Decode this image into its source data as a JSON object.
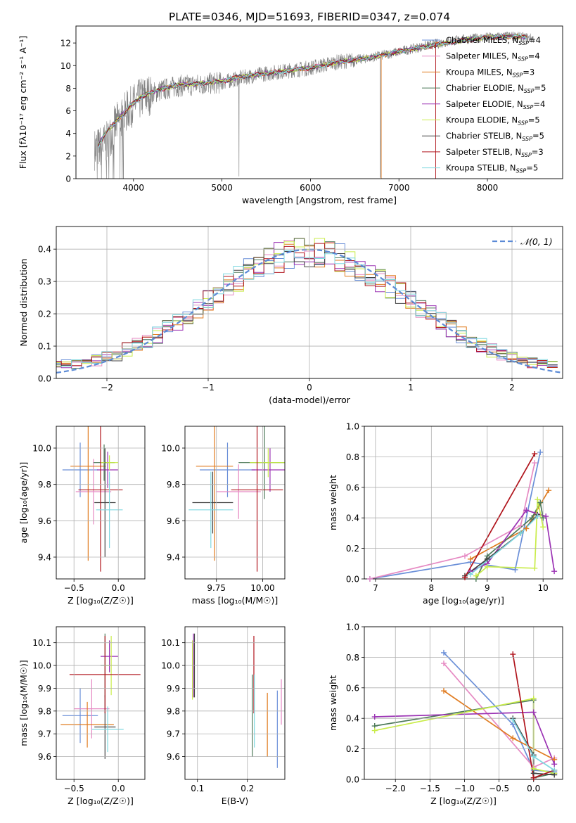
{
  "title": "PLATE=0346, MJD=51693, FIBERID=0347, z=0.074",
  "models": [
    {
      "name": "Chabrier MILES",
      "nssp": "4",
      "color": "#6a8fd8"
    },
    {
      "name": "Salpeter MILES",
      "nssp": "4",
      "color": "#e68ac3"
    },
    {
      "name": "Kroupa MILES",
      "nssp": "3",
      "color": "#e07b1f"
    },
    {
      "name": "Chabrier ELODIE",
      "nssp": "5",
      "color": "#4e7a5a"
    },
    {
      "name": "Salpeter ELODIE",
      "nssp": "4",
      "color": "#9b32b4"
    },
    {
      "name": "Kroupa ELODIE",
      "nssp": "5",
      "color": "#c9ec4a"
    },
    {
      "name": "Chabrier STELIB",
      "nssp": "5",
      "color": "#444444"
    },
    {
      "name": "Salpeter STELIB",
      "nssp": "3",
      "color": "#b0141c"
    },
    {
      "name": "Kroupa STELIB",
      "nssp": "5",
      "color": "#7fd8e0"
    }
  ],
  "chart_data": [
    {
      "id": "spectrum",
      "type": "line",
      "xlabel": "wavelength [Angstrom, rest frame]",
      "ylabel": "Flux [fλ10⁻¹⁷ erg cm⁻² s⁻¹ A⁻¹]",
      "xlim": [
        3350,
        8850
      ],
      "ylim": [
        0,
        13.5
      ],
      "xticks": [
        4000,
        5000,
        6000,
        7000,
        8000
      ],
      "yticks": [
        0,
        2,
        4,
        6,
        8,
        10,
        12
      ],
      "data_color": "#808080",
      "data_knots": [
        [
          3570,
          2.6
        ],
        [
          3700,
          3.2
        ],
        [
          3800,
          4.8
        ],
        [
          3950,
          6.2
        ],
        [
          4100,
          7.2
        ],
        [
          4300,
          7.8
        ],
        [
          4500,
          8.2
        ],
        [
          4700,
          8.3
        ],
        [
          5000,
          8.5
        ],
        [
          5200,
          8.9
        ],
        [
          5500,
          9.3
        ],
        [
          5800,
          9.6
        ],
        [
          6000,
          9.8
        ],
        [
          6300,
          10.3
        ],
        [
          6600,
          10.6
        ],
        [
          6800,
          10.9
        ],
        [
          7100,
          11.4
        ],
        [
          7400,
          11.9
        ],
        [
          7700,
          12.3
        ],
        [
          8000,
          12.5
        ],
        [
          8300,
          12.6
        ],
        [
          8500,
          12.4
        ]
      ],
      "model_knots": [
        [
          3600,
          2.9
        ],
        [
          3700,
          4.2
        ],
        [
          3800,
          5.0
        ],
        [
          3950,
          6.3
        ],
        [
          4100,
          7.3
        ],
        [
          4300,
          7.9
        ],
        [
          4500,
          8.3
        ],
        [
          4700,
          8.4
        ],
        [
          5000,
          8.6
        ],
        [
          5200,
          9.0
        ],
        [
          5500,
          9.3
        ],
        [
          5800,
          9.6
        ],
        [
          6000,
          9.8
        ],
        [
          6300,
          10.3
        ],
        [
          6600,
          10.6
        ],
        [
          6800,
          10.9
        ],
        [
          7100,
          11.4
        ],
        [
          7400,
          11.8
        ],
        [
          7700,
          12.2
        ],
        [
          8000,
          12.5
        ],
        [
          8300,
          12.6
        ],
        [
          8450,
          12.5
        ]
      ]
    },
    {
      "id": "residuals",
      "type": "step",
      "xlabel": "(data-model)/error",
      "ylabel": "Normed distribution",
      "xlim": [
        -2.5,
        2.5
      ],
      "ylim": [
        0,
        0.47
      ],
      "xticks": [
        -2,
        -1,
        0,
        1,
        2
      ],
      "yticks": [
        0.0,
        0.1,
        0.2,
        0.3,
        0.4
      ],
      "legend": "𝒩(0, 1)",
      "gauss_color": "#5b8ad6"
    },
    {
      "id": "age_vs_Z",
      "type": "errorbar",
      "xlabel": "Z [log₁₀(Z/Z☉)]",
      "ylabel": "age  [log₁₀(age/yr)]",
      "xlim": [
        -0.7,
        0.3
      ],
      "ylim": [
        9.28,
        10.12
      ],
      "xticks": [
        -0.5,
        0.0
      ],
      "yticks": [
        9.4,
        9.6,
        9.8,
        10.0
      ],
      "points": [
        {
          "x": -0.43,
          "y": 9.88,
          "xe": 0.2,
          "ye": 0.15
        },
        {
          "x": -0.28,
          "y": 9.76,
          "xe": 0.2,
          "ye": 0.18
        },
        {
          "x": -0.34,
          "y": 9.9,
          "xe": 0.2,
          "ye": 0.52
        },
        {
          "x": -0.16,
          "y": 9.92,
          "xe": 0.12,
          "ye": 0.1
        },
        {
          "x": -0.12,
          "y": 9.88,
          "xe": 0.12,
          "ye": 0.1
        },
        {
          "x": -0.1,
          "y": 9.92,
          "xe": 0.1,
          "ye": 0.04
        },
        {
          "x": -0.15,
          "y": 9.7,
          "xe": 0.12,
          "ye": 0.3
        },
        {
          "x": -0.2,
          "y": 9.77,
          "xe": 0.25,
          "ye": 0.45
        },
        {
          "x": -0.1,
          "y": 9.66,
          "xe": 0.15,
          "ye": 0.21
        }
      ]
    },
    {
      "id": "age_vs_mass",
      "type": "errorbar",
      "xlabel": "mass [log₁₀(M/M☉)]",
      "ylabel": "",
      "xlim": [
        9.58,
        10.12
      ],
      "ylim": [
        9.28,
        10.12
      ],
      "xticks": [
        9.75,
        10.0
      ],
      "yticks": [
        9.4,
        9.6,
        9.8,
        10.0
      ],
      "points": [
        {
          "x": 9.81,
          "y": 9.88,
          "xe": 0.15,
          "ye": 0.15
        },
        {
          "x": 9.87,
          "y": 9.76,
          "xe": 0.12,
          "ye": 0.15
        },
        {
          "x": 9.74,
          "y": 9.9,
          "xe": 0.1,
          "ye": 0.52
        },
        {
          "x": 10.01,
          "y": 9.92,
          "xe": 0.14,
          "ye": 0.2
        },
        {
          "x": 10.04,
          "y": 9.88,
          "xe": 0.1,
          "ye": 0.12
        },
        {
          "x": 10.03,
          "y": 9.92,
          "xe": 0.1,
          "ye": 0.08
        },
        {
          "x": 9.73,
          "y": 9.7,
          "xe": 0.11,
          "ye": 0.17
        },
        {
          "x": 9.97,
          "y": 9.77,
          "xe": 0.14,
          "ye": 0.45
        },
        {
          "x": 9.72,
          "y": 9.66,
          "xe": 0.12,
          "ye": 0.21
        }
      ]
    },
    {
      "id": "weight_vs_age",
      "type": "line",
      "xlabel": "age  [log₁₀(age/yr)]",
      "ylabel": "mass weight",
      "xlim": [
        6.8,
        10.35
      ],
      "ylim": [
        0,
        1.0
      ],
      "xticks": [
        7,
        8,
        9,
        10
      ],
      "yticks": [
        0.0,
        0.2,
        0.4,
        0.6,
        0.8,
        1.0
      ],
      "series": [
        {
          "points": [
            [
              6.9,
              0.0
            ],
            [
              8.7,
              0.11
            ],
            [
              9.5,
              0.06
            ],
            [
              9.95,
              0.83
            ]
          ]
        },
        {
          "points": [
            [
              6.9,
              0.0
            ],
            [
              8.6,
              0.15
            ],
            [
              9.6,
              0.35
            ],
            [
              9.85,
              0.76
            ]
          ]
        },
        {
          "points": [
            [
              8.7,
              0.13
            ],
            [
              9.7,
              0.33
            ],
            [
              10.1,
              0.58
            ]
          ]
        },
        {
          "points": [
            [
              8.8,
              0.0
            ],
            [
              9.0,
              0.15
            ],
            [
              9.8,
              0.4
            ],
            [
              9.95,
              0.5
            ],
            [
              10.0,
              0.4
            ]
          ]
        },
        {
          "points": [
            [
              8.7,
              0.05
            ],
            [
              9.0,
              0.1
            ],
            [
              9.7,
              0.45
            ],
            [
              10.05,
              0.41
            ],
            [
              10.2,
              0.05
            ]
          ]
        },
        {
          "points": [
            [
              8.8,
              0.02
            ],
            [
              9.0,
              0.08
            ],
            [
              9.85,
              0.07
            ],
            [
              9.9,
              0.52
            ],
            [
              10.0,
              0.34
            ]
          ]
        },
        {
          "points": [
            [
              8.6,
              0.02
            ],
            [
              9.0,
              0.13
            ],
            [
              9.6,
              0.3
            ],
            [
              9.9,
              0.42
            ]
          ]
        },
        {
          "points": [
            [
              8.6,
              0.01
            ],
            [
              9.85,
              0.82
            ]
          ]
        },
        {
          "points": [
            [
              8.7,
              0.03
            ],
            [
              9.6,
              0.3
            ],
            [
              9.9,
              0.41
            ]
          ]
        }
      ]
    },
    {
      "id": "mass_vs_Z",
      "type": "errorbar",
      "xlabel": "Z [log₁₀(Z/Z☉)]",
      "ylabel": "mass [log₁₀(M/M☉)]",
      "xlim": [
        -0.7,
        0.3
      ],
      "ylim": [
        9.5,
        10.17
      ],
      "xticks": [
        -0.5,
        0.0
      ],
      "yticks": [
        9.6,
        9.7,
        9.8,
        9.9,
        10.0,
        10.1
      ],
      "points": [
        {
          "x": -0.43,
          "y": 9.78,
          "xe": 0.2,
          "ye": 0.12
        },
        {
          "x": -0.3,
          "y": 9.81,
          "xe": 0.2,
          "ye": 0.13
        },
        {
          "x": -0.35,
          "y": 9.74,
          "xe": 0.3,
          "ye": 0.1
        },
        {
          "x": -0.15,
          "y": 10.0,
          "xe": 0.05,
          "ye": 0.14
        },
        {
          "x": -0.1,
          "y": 10.04,
          "xe": 0.1,
          "ye": 0.07
        },
        {
          "x": -0.08,
          "y": 10.0,
          "xe": 0.08,
          "ye": 0.13
        },
        {
          "x": -0.15,
          "y": 9.73,
          "xe": 0.12,
          "ye": 0.14
        },
        {
          "x": -0.15,
          "y": 9.96,
          "xe": 0.4,
          "ye": 0.17
        },
        {
          "x": -0.12,
          "y": 9.72,
          "xe": 0.18,
          "ye": 0.1
        }
      ]
    },
    {
      "id": "mass_vs_ebv",
      "type": "errorbar",
      "xlabel": "E(B-V)",
      "ylabel": "",
      "xlim": [
        0.075,
        0.275
      ],
      "ylim": [
        9.5,
        10.17
      ],
      "xticks": [
        0.1,
        0.2
      ],
      "yticks": [
        9.6,
        9.7,
        9.8,
        9.9,
        10.0,
        10.1
      ],
      "points": [
        {
          "x": 0.26,
          "y": 9.72,
          "xe": 0.0,
          "ye": 0.17
        },
        {
          "x": 0.268,
          "y": 9.84,
          "xe": 0.0,
          "ye": 0.1
        },
        {
          "x": 0.24,
          "y": 9.74,
          "xe": 0.0,
          "ye": 0.14
        },
        {
          "x": 0.21,
          "y": 9.78,
          "xe": 0.0,
          "ye": 0.18
        },
        {
          "x": 0.092,
          "y": 10.0,
          "xe": 0.0,
          "ye": 0.14
        },
        {
          "x": 0.09,
          "y": 9.98,
          "xe": 0.0,
          "ye": 0.13
        },
        {
          "x": 0.094,
          "y": 10.0,
          "xe": 0.0,
          "ye": 0.14
        },
        {
          "x": 0.213,
          "y": 9.96,
          "xe": 0.0,
          "ye": 0.17
        },
        {
          "x": 0.214,
          "y": 9.8,
          "xe": 0.0,
          "ye": 0.16
        }
      ]
    },
    {
      "id": "weight_vs_Z",
      "type": "line",
      "xlabel": "Z [log₁₀(Z/Z☉)]",
      "ylabel": "mass weight",
      "xlim": [
        -2.45,
        0.42
      ],
      "ylim": [
        0,
        1.0
      ],
      "xticks": [
        -2.0,
        -1.5,
        -1.0,
        -0.5,
        0.0
      ],
      "yticks": [
        0.0,
        0.2,
        0.4,
        0.6,
        0.8,
        1.0
      ],
      "series": [
        {
          "points": [
            [
              -1.3,
              0.83
            ],
            [
              -0.3,
              0.36
            ],
            [
              0.0,
              0.06
            ],
            [
              0.3,
              0.05
            ]
          ]
        },
        {
          "points": [
            [
              -1.3,
              0.76
            ],
            [
              0.0,
              0.08
            ],
            [
              0.3,
              0.14
            ]
          ]
        },
        {
          "points": [
            [
              -1.3,
              0.58
            ],
            [
              -0.3,
              0.27
            ],
            [
              0.3,
              0.13
            ]
          ]
        },
        {
          "points": [
            [
              -2.3,
              0.35
            ],
            [
              0.0,
              0.52
            ],
            [
              0.0,
              0.01
            ],
            [
              0.3,
              0.04
            ]
          ]
        },
        {
          "points": [
            [
              -2.3,
              0.41
            ],
            [
              0.0,
              0.44
            ],
            [
              0.3,
              0.1
            ]
          ]
        },
        {
          "points": [
            [
              -2.3,
              0.32
            ],
            [
              0.0,
              0.53
            ],
            [
              0.0,
              0.07
            ],
            [
              0.3,
              0.04
            ]
          ]
        },
        {
          "points": [
            [
              -0.3,
              0.4
            ],
            [
              0.0,
              0.16
            ],
            [
              0.0,
              0.04
            ],
            [
              0.3,
              0.03
            ]
          ]
        },
        {
          "points": [
            [
              -0.3,
              0.82
            ],
            [
              0.0,
              0.01
            ],
            [
              0.3,
              0.06
            ]
          ]
        },
        {
          "points": [
            [
              -0.3,
              0.39
            ],
            [
              0.0,
              0.15
            ],
            [
              0.3,
              0.06
            ]
          ]
        }
      ]
    }
  ]
}
